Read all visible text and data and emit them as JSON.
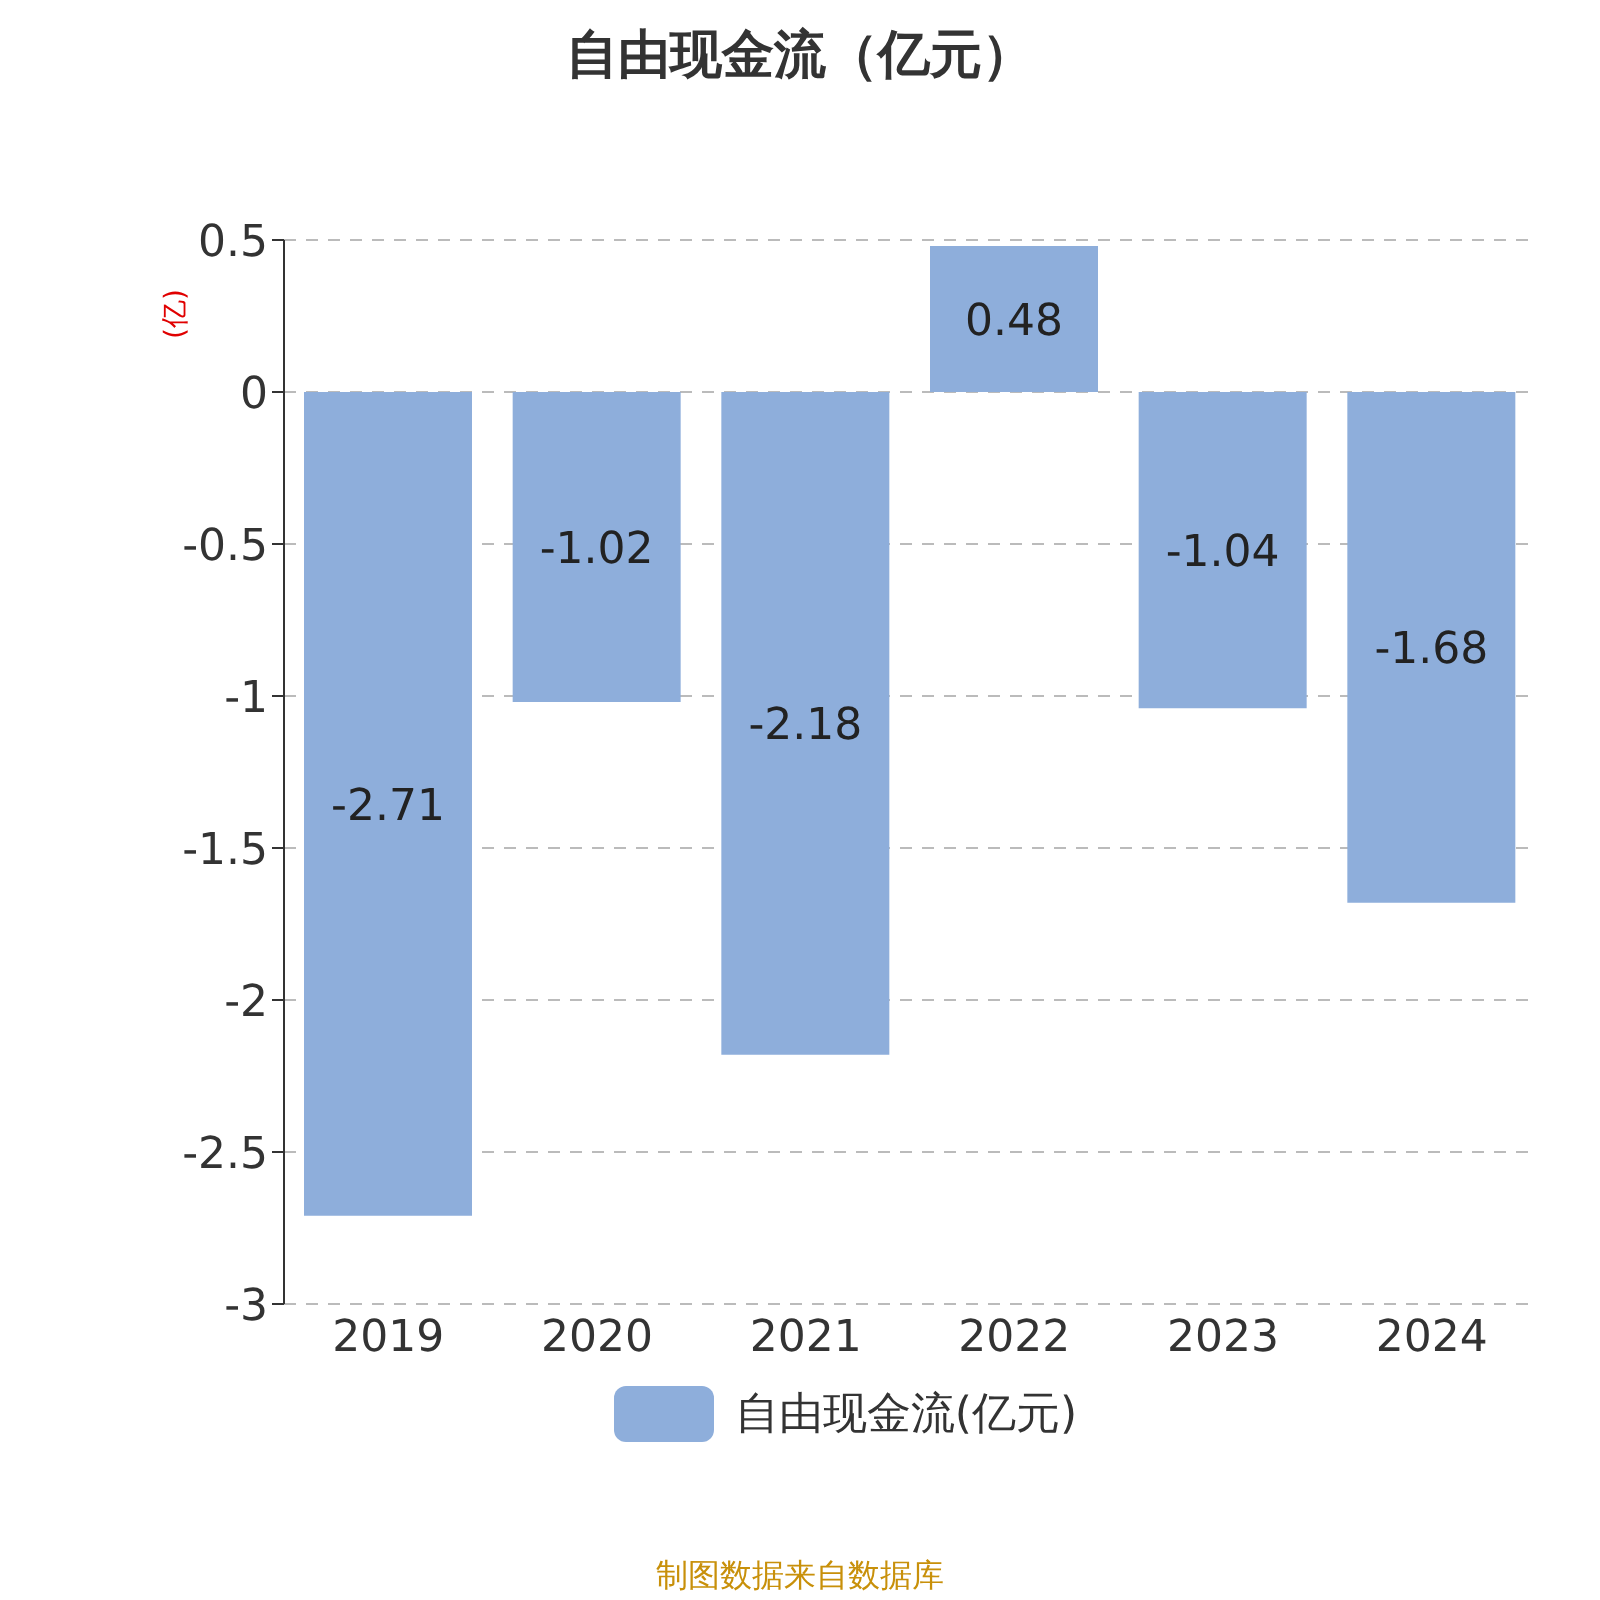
{
  "chart_data": {
    "type": "bar",
    "title": "自由现金流（亿元）",
    "ylabel": "(亿)",
    "categories": [
      "2019",
      "2020",
      "2021",
      "2022",
      "2023",
      "2024"
    ],
    "series": [
      {
        "name": "自由现金流(亿元)",
        "color": "#8eaedb",
        "values": [
          -2.71,
          -1.02,
          -2.18,
          0.48,
          -1.04,
          -1.68
        ]
      }
    ],
    "ylim": [
      -3,
      0.5
    ],
    "yticks": [
      -3,
      -2.5,
      -2,
      -1.5,
      -1,
      -0.5,
      0,
      0.5
    ],
    "grid": "y",
    "data_labels": true,
    "legend": "bottom",
    "annotations": [
      "制图数据来自数据库"
    ]
  }
}
